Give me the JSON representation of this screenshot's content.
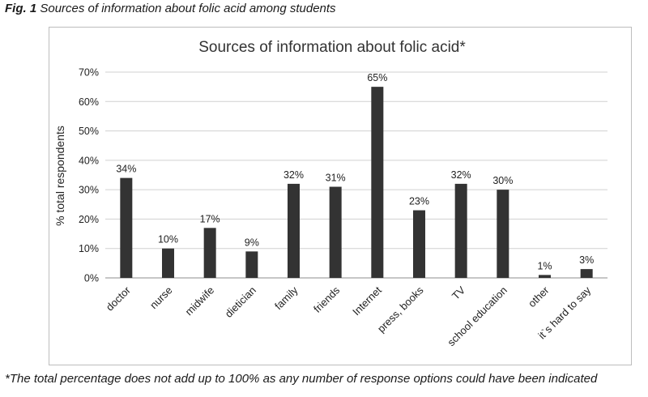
{
  "figure": {
    "label": "Fig. 1",
    "caption": "Sources of information about folic acid among students",
    "footnote": "*The total percentage does not add up to 100% as any number of response options could have been indicated"
  },
  "chart_data": {
    "type": "bar",
    "title": "Sources of information about folic acid*",
    "xlabel": "",
    "ylabel": "% total respondents",
    "ylim": [
      0,
      70
    ],
    "yticks": [
      "0%",
      "10%",
      "20%",
      "30%",
      "40%",
      "50%",
      "60%",
      "70%"
    ],
    "grid": true,
    "legend": "none",
    "bar_color": "#333333",
    "categories": [
      "doctor",
      "nurse",
      "midwife",
      "dietician",
      "family",
      "friends",
      "Internet",
      "press, books",
      "TV",
      "school education",
      "other",
      "it`s hard to say"
    ],
    "values": [
      34,
      10,
      17,
      9,
      32,
      31,
      65,
      23,
      32,
      30,
      1,
      3
    ],
    "data_labels": [
      "34%",
      "10%",
      "17%",
      "9%",
      "32%",
      "31%",
      "65%",
      "23%",
      "32%",
      "30%",
      "1%",
      "3%"
    ]
  }
}
